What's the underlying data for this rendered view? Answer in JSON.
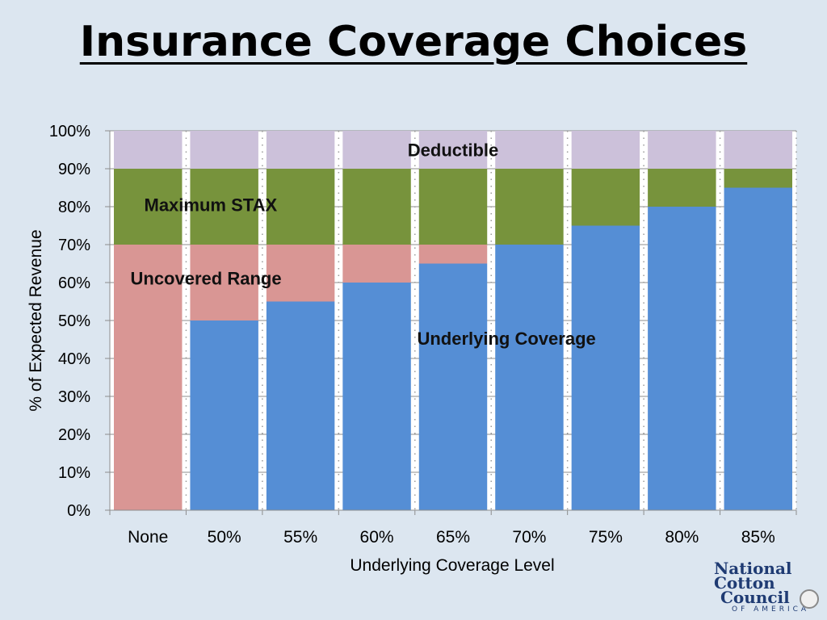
{
  "header": {
    "title": "Insurance Coverage Choices"
  },
  "logo": {
    "line1": "National",
    "line2": "Cotton",
    "line3": "Council",
    "line4": "OF AMERICA"
  },
  "chart_data": {
    "type": "bar",
    "stacked": true,
    "categories": [
      "None",
      "50%",
      "55%",
      "60%",
      "65%",
      "70%",
      "75%",
      "80%",
      "85%"
    ],
    "series": [
      {
        "name": "Underlying Coverage",
        "values": [
          0,
          50,
          55,
          60,
          65,
          70,
          75,
          80,
          85
        ],
        "color": "#558ed5"
      },
      {
        "name": "Uncovered Range",
        "values": [
          70,
          20,
          15,
          10,
          5,
          0,
          0,
          0,
          0
        ],
        "color": "#d99694"
      },
      {
        "name": "Maximum STAX",
        "values": [
          20,
          20,
          20,
          20,
          20,
          20,
          15,
          10,
          5
        ],
        "color": "#77933c"
      },
      {
        "name": "Deductible",
        "values": [
          10,
          10,
          10,
          10,
          10,
          10,
          10,
          10,
          10
        ],
        "color": "#ccc1da"
      }
    ],
    "xlabel": "Underlying Coverage Level",
    "ylabel": "% of Expected Revenue",
    "ylim": [
      0,
      100
    ],
    "yticks": [
      "0%",
      "10%",
      "20%",
      "30%",
      "40%",
      "50%",
      "60%",
      "70%",
      "80%",
      "90%",
      "100%"
    ],
    "grid": true,
    "legend": "inline labels"
  }
}
